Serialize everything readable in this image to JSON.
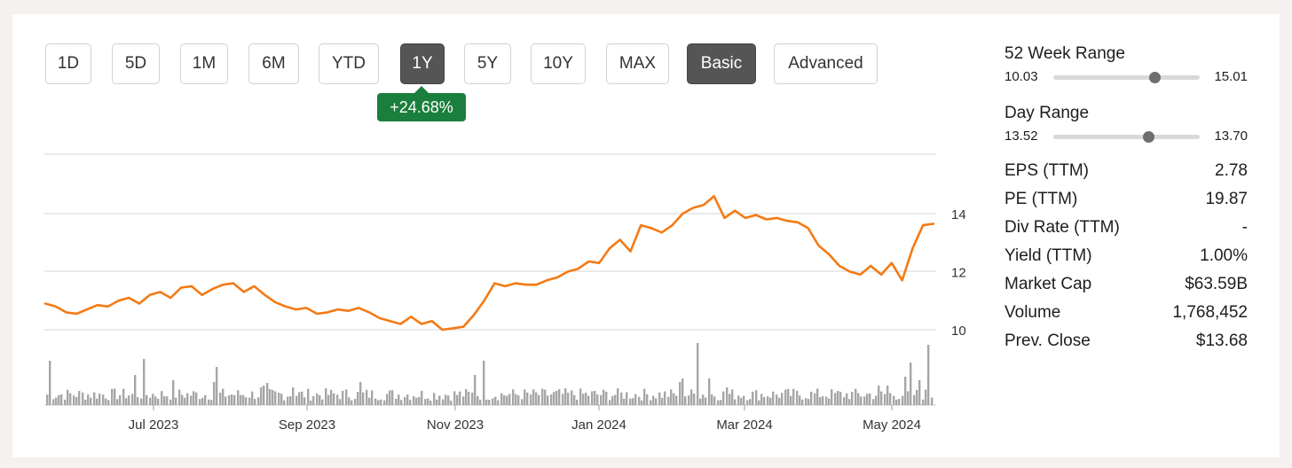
{
  "toolbar": {
    "ranges": [
      "1D",
      "5D",
      "1M",
      "6M",
      "YTD",
      "1Y",
      "5Y",
      "10Y",
      "MAX"
    ],
    "active_range": "1Y",
    "modes": [
      "Basic",
      "Advanced"
    ],
    "active_mode": "Basic"
  },
  "change_badge": "+24.68%",
  "colors": {
    "line": "#f47a14",
    "badge": "#1a7f3c",
    "volume": "#a6a6a6",
    "grid": "#d4d4d4"
  },
  "stats": {
    "week52": {
      "label": "52 Week Range",
      "low": "10.03",
      "high": "15.01",
      "position": 0.69
    },
    "day": {
      "label": "Day Range",
      "low": "13.52",
      "high": "13.70",
      "position": 0.65
    },
    "rows": [
      {
        "label": "EPS (TTM)",
        "value": "2.78"
      },
      {
        "label": "PE (TTM)",
        "value": "19.87"
      },
      {
        "label": "Div Rate (TTM)",
        "value": "-"
      },
      {
        "label": "Yield (TTM)",
        "value": "1.00%"
      },
      {
        "label": "Market Cap",
        "value": "$63.59B"
      },
      {
        "label": "Volume",
        "value": "1,768,452"
      },
      {
        "label": "Prev. Close",
        "value": "$13.68"
      }
    ]
  },
  "chart_data": {
    "type": "line",
    "x_ticks": [
      "Jul 2023",
      "Sep 2023",
      "Nov 2023",
      "Jan 2024",
      "Mar 2024",
      "May 2024"
    ],
    "y_ticks": [
      10,
      12,
      14
    ],
    "ylim": [
      10,
      16
    ],
    "grid": true,
    "series": [
      {
        "values": [
          10.9,
          10.8,
          10.6,
          10.55,
          10.7,
          10.85,
          10.8,
          11.0,
          11.1,
          10.9,
          11.2,
          11.3,
          11.1,
          11.45,
          11.5,
          11.2,
          11.4,
          11.55,
          11.6,
          11.3,
          11.5,
          11.2,
          10.95,
          10.8,
          10.7,
          10.75,
          10.55,
          10.6,
          10.7,
          10.65,
          10.75,
          10.6,
          10.4,
          10.3,
          10.2,
          10.45,
          10.2,
          10.3,
          10.0,
          10.05,
          10.1,
          10.5,
          11.0,
          11.6,
          11.5,
          11.6,
          11.55,
          11.55,
          11.7,
          11.8,
          12.0,
          12.1,
          12.35,
          12.3,
          12.8,
          13.1,
          12.7,
          13.6,
          13.5,
          13.35,
          13.6,
          14.0,
          14.2,
          14.3,
          14.6,
          13.85,
          14.1,
          13.85,
          13.95,
          13.8,
          13.85,
          13.75,
          13.7,
          13.5,
          12.9,
          12.6,
          12.2,
          12.0,
          11.9,
          12.2,
          11.9,
          12.3,
          11.7,
          12.8,
          13.6,
          13.65
        ]
      }
    ],
    "volume_note": "daily volume bars shown beneath price line"
  }
}
